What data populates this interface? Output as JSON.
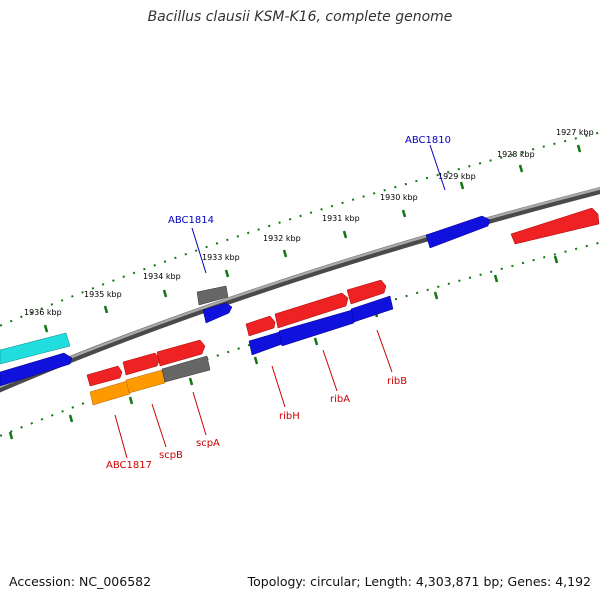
{
  "title": "Bacillus clausii KSM-K16, complete genome",
  "footer": {
    "accession": "Accession: NC_006582",
    "topology": "Topology: circular; Length: 4,303,871 bp; Genes: 4,192"
  },
  "ticks": [
    "1927 kbp",
    "1928 kbp",
    "1929 kbp",
    "1930 kbp",
    "1931 kbp",
    "1932 kbp",
    "1933 kbp",
    "1934 kbp",
    "1935 kbp",
    "1936 kbp"
  ],
  "gene_labels": {
    "outer": [
      "ABC1810",
      "ABC1814"
    ],
    "inner": [
      "ABC1817",
      "scpB",
      "scpA",
      "ribH",
      "ribA",
      "ribB"
    ]
  },
  "colors": {
    "red": "#ee2222",
    "blue": "#1111dd",
    "gray": "#666666",
    "cyan": "#22dddd",
    "orange": "#ff9900",
    "tick_green": "#117711",
    "outer_label": "#0000bb",
    "inner_label": "#cc0000"
  }
}
